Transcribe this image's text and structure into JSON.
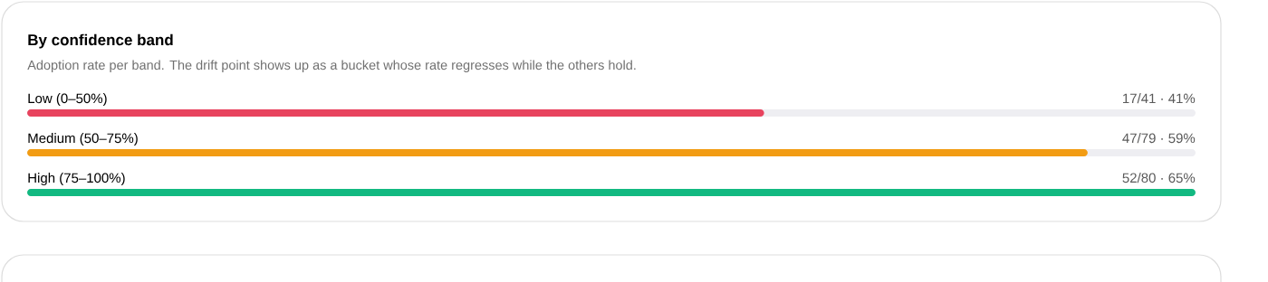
{
  "chart_data": {
    "type": "bar",
    "orientation": "horizontal",
    "title": "By confidence band",
    "subtitle": "Adoption rate per band. The drift point shows up as a bucket whose rate regresses while the others hold.",
    "categories": [
      "Low (0–50%)",
      "Medium (50–75%)",
      "High (75–100%)"
    ],
    "values": [
      41,
      59,
      65
    ],
    "colors": [
      "#e8435e",
      "#f29c13",
      "#12b981"
    ],
    "value_labels": [
      "17/41 · 41%",
      "47/79 · 59%",
      "52/80 · 65%"
    ]
  }
}
